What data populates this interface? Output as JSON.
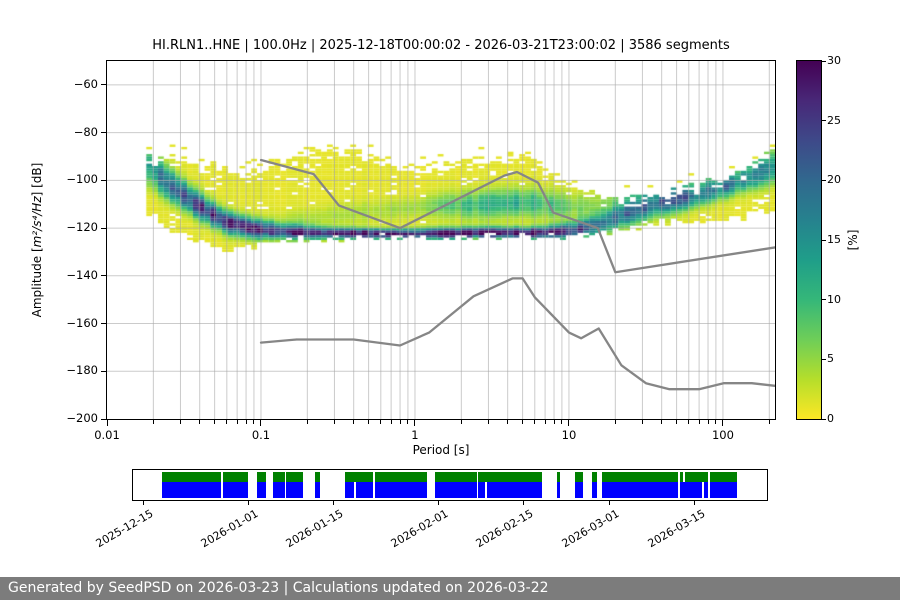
{
  "figure": {
    "background": "#ffffff"
  },
  "footer": {
    "text": "Generated by SeedPSD on 2026-03-23 | Calculations updated on 2026-03-22",
    "background": "#7c7c7c",
    "text_color": "#ffffff"
  },
  "chart_data": {
    "type": "heatmap",
    "title": "HI.RLN1..HNE | 100.0Hz | 2025-12-18T00:00:02 - 2026-03-21T23:00:02 | 3586 segments",
    "xlabel": "Period [s]",
    "ylabel_pre": "Amplitude [",
    "ylabel_math": "m²/s⁴/Hz",
    "ylabel_post": "] [dB]",
    "xscale": "log",
    "xlim": [
      0.01,
      217.8
    ],
    "ylim": [
      -200,
      -50
    ],
    "grid": {
      "on": true,
      "color": "#a9a9a9",
      "opacity": 0.6
    },
    "xticks": {
      "values": [
        0.01,
        0.1,
        1,
        10,
        100
      ],
      "labels": [
        "0.01",
        "0.1",
        "1",
        "10",
        "100"
      ]
    },
    "yticks": {
      "values": [
        -60,
        -80,
        -100,
        -120,
        -140,
        -160,
        -180,
        -200
      ],
      "labels": [
        "−60",
        "−80",
        "−100",
        "−120",
        "−140",
        "−160",
        "−180",
        "−200"
      ]
    },
    "histogram": {
      "description": "PPSD probability histogram; per log-period control point: top/bottom envelope of non-zero bins, mode amplitude, peak probability percent, gaussian width",
      "period_range": [
        0.018,
        220
      ],
      "n_period_bins": 108,
      "db_bin_width": 1,
      "base_pct": 1.2,
      "periods": [
        0.019,
        0.025,
        0.04,
        0.06,
        0.09,
        0.13,
        0.2,
        0.3,
        0.45,
        0.7,
        1.0,
        1.5,
        2.5,
        4.0,
        5.5,
        8.0,
        11,
        16,
        25,
        40,
        70,
        120,
        218
      ],
      "top_db": [
        -88,
        -89,
        -91,
        -93,
        -94,
        -90,
        -87,
        -85,
        -88,
        -91,
        -93,
        -92,
        -91,
        -87,
        -88,
        -97,
        -102,
        -105,
        -106,
        -104,
        -101,
        -95,
        -86
      ],
      "bottom_db": [
        -114,
        -120,
        -126,
        -129,
        -128,
        -126,
        -125,
        -125,
        -124,
        -124,
        -124,
        -124,
        -124,
        -124,
        -124,
        -124,
        -123,
        -122,
        -120,
        -118,
        -117,
        -116,
        -113
      ],
      "mode_db": [
        -93,
        -100,
        -110,
        -117,
        -120,
        -121,
        -121.5,
        -121.7,
        -121.8,
        -122,
        -122,
        -121.8,
        -121.5,
        -121.5,
        -121.6,
        -121.3,
        -120.5,
        -118,
        -113,
        -109,
        -106,
        -101,
        -95
      ],
      "mode_pct": [
        14,
        16,
        18,
        20,
        22,
        24,
        27,
        29,
        30,
        30,
        28,
        29,
        30,
        30,
        29,
        26,
        24,
        20,
        18,
        17,
        16,
        14,
        12
      ],
      "mode_sigma": [
        4,
        4,
        3.5,
        3,
        2.5,
        2,
        1.8,
        1.5,
        1.4,
        1.3,
        1.5,
        1.5,
        1.5,
        1.5,
        1.5,
        1.8,
        2.2,
        3,
        3.5,
        3.5,
        3,
        3,
        4
      ],
      "upper_db": [
        -100,
        -105,
        -112,
        -118,
        -119,
        -118,
        -116,
        -114,
        -113,
        -112,
        -111,
        -110,
        -110,
        -109,
        -109,
        -110,
        -111,
        -110,
        -106,
        -103,
        -100,
        -96,
        -90
      ],
      "upper_pct": [
        4,
        5,
        6,
        5,
        4,
        3,
        3,
        3,
        3,
        3,
        4,
        6,
        9,
        11,
        10,
        7,
        5,
        5,
        5,
        5,
        5,
        5,
        5
      ],
      "upper_sigma": [
        3,
        3,
        3,
        3,
        3,
        3,
        3,
        3,
        3,
        3,
        3,
        3.5,
        4,
        4,
        4,
        4,
        4,
        4,
        4,
        4,
        4,
        4,
        4
      ]
    },
    "noise_models": {
      "color": "#868686",
      "line_width": 2.3,
      "nhnm": [
        [
          0.1,
          -91.5
        ],
        [
          0.22,
          -97.4
        ],
        [
          0.32,
          -110.5
        ],
        [
          0.8,
          -120.0
        ],
        [
          3.8,
          -98.0
        ],
        [
          4.6,
          -96.5
        ],
        [
          6.3,
          -101.0
        ],
        [
          7.9,
          -113.5
        ],
        [
          15.4,
          -120.0
        ],
        [
          20.0,
          -138.5
        ],
        [
          217.8,
          -128.1
        ]
      ],
      "nlnm": [
        [
          0.1,
          -168.0
        ],
        [
          0.17,
          -166.7
        ],
        [
          0.4,
          -166.7
        ],
        [
          0.8,
          -169.2
        ],
        [
          1.24,
          -163.7
        ],
        [
          2.4,
          -148.6
        ],
        [
          4.3,
          -141.1
        ],
        [
          5.0,
          -141.1
        ],
        [
          6.0,
          -149.0
        ],
        [
          10.0,
          -163.8
        ],
        [
          12.0,
          -166.2
        ],
        [
          15.6,
          -162.1
        ],
        [
          21.9,
          -177.5
        ],
        [
          31.6,
          -185.0
        ],
        [
          45.0,
          -187.5
        ],
        [
          70.0,
          -187.5
        ],
        [
          101.0,
          -185.0
        ],
        [
          154.0,
          -185.0
        ],
        [
          217.8,
          -186.1
        ]
      ]
    },
    "colorbar": {
      "min": 0,
      "max": 30,
      "ticks": [
        0,
        5,
        10,
        15,
        20,
        25,
        30
      ],
      "label": "[%]",
      "colors_top_to_bottom": [
        "#440154",
        "#482878",
        "#3e4989",
        "#31688e",
        "#26828e",
        "#1f9e89",
        "#35b779",
        "#6ece58",
        "#b5de2b",
        "#fde725"
      ]
    },
    "timeline": {
      "green": "#008000",
      "blue": "#0000ff",
      "data_range_frac": [
        0.0457,
        0.9527
      ],
      "common_gaps": [
        [
          0.139,
          0.142
        ],
        [
          0.181,
          0.196
        ],
        [
          0.21,
          0.221
        ],
        [
          0.2397,
          0.2413
        ],
        [
          0.268,
          0.287
        ],
        [
          0.295,
          0.334
        ],
        [
          0.378,
          0.381
        ],
        [
          0.464,
          0.476
        ],
        [
          0.542,
          0.544
        ],
        [
          0.645,
          0.669
        ],
        [
          0.673,
          0.697
        ],
        [
          0.71,
          0.724
        ],
        [
          0.732,
          0.74
        ],
        [
          0.86,
          0.863
        ],
        [
          0.907,
          0.91
        ]
      ],
      "blue_extra_gaps": [
        [
          0.348,
          0.351
        ],
        [
          0.555,
          0.558
        ],
        [
          0.898,
          0.901
        ]
      ],
      "green_extra_gaps": [
        [
          0.868,
          0.871
        ]
      ],
      "dates": [
        "2025-12-15",
        "2026-01-01",
        "2026-01-15",
        "2026-02-01",
        "2026-02-15",
        "2026-03-01",
        "2026-03-15"
      ],
      "date_fracs": [
        0.0158,
        0.1814,
        0.3155,
        0.4811,
        0.6152,
        0.7508,
        0.8864
      ]
    }
  }
}
